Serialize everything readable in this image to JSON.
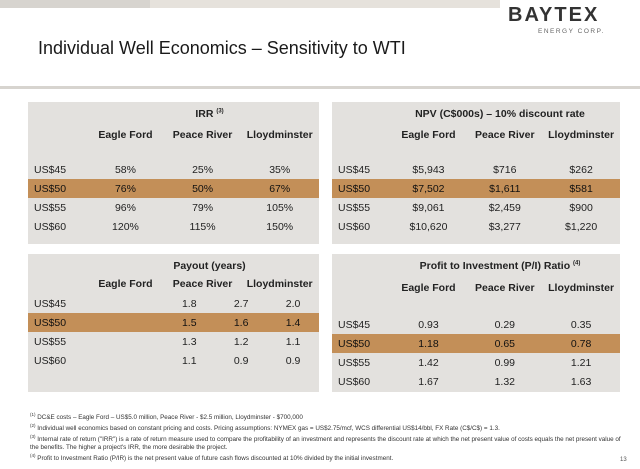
{
  "logo": {
    "name": "BAYTEX",
    "sub": "ENERGY CORP."
  },
  "page_title": "Individual Well Economics – Sensitivity to WTI",
  "irr": {
    "title": "IRR",
    "note": "(3)",
    "columns": [
      "Eagle Ford",
      "Peace River",
      "Lloydminster"
    ],
    "rows": [
      {
        "label": "US$45",
        "values": [
          "58%",
          "25%",
          "35%"
        ]
      },
      {
        "label": "US$50",
        "values": [
          "76%",
          "50%",
          "67%"
        ]
      },
      {
        "label": "US$55",
        "values": [
          "96%",
          "79%",
          "105%"
        ]
      },
      {
        "label": "US$60",
        "values": [
          "120%",
          "115%",
          "150%"
        ]
      }
    ]
  },
  "npv": {
    "title": "NPV (C$000s) – 10% discount rate",
    "columns": [
      "Eagle Ford",
      "Peace River",
      "Lloydminster"
    ],
    "rows": [
      {
        "label": "US$45",
        "values": [
          "$5,943",
          "$716",
          "$262"
        ]
      },
      {
        "label": "US$50",
        "values": [
          "$7,502",
          "$1,611",
          "$581"
        ]
      },
      {
        "label": "US$55",
        "values": [
          "$9,061",
          "$2,459",
          "$900"
        ]
      },
      {
        "label": "US$60",
        "values": [
          "$10,620",
          "$3,277",
          "$1,220"
        ]
      }
    ]
  },
  "payout": {
    "title": "Payout (years)",
    "columns": [
      "Eagle Ford",
      "Peace River",
      "Lloydminster"
    ],
    "rows": [
      {
        "label": "US$45",
        "values": [
          "1.8",
          "2.7",
          "2.0"
        ]
      },
      {
        "label": "US$50",
        "values": [
          "1.5",
          "1.6",
          "1.4"
        ]
      },
      {
        "label": "US$55",
        "values": [
          "1.3",
          "1.2",
          "1.1"
        ]
      },
      {
        "label": "US$60",
        "values": [
          "1.1",
          "0.9",
          "0.9"
        ]
      }
    ]
  },
  "pi": {
    "title": "Profit to Investment (P/I) Ratio",
    "note": "(4)",
    "columns": [
      "Eagle Ford",
      "Peace River",
      "Lloydminster"
    ],
    "rows": [
      {
        "label": "US$45",
        "values": [
          "0.93",
          "0.29",
          "0.35"
        ]
      },
      {
        "label": "US$50",
        "values": [
          "1.18",
          "0.65",
          "0.78"
        ]
      },
      {
        "label": "US$55",
        "values": [
          "1.42",
          "0.99",
          "1.21"
        ]
      },
      {
        "label": "US$60",
        "values": [
          "1.67",
          "1.32",
          "1.63"
        ]
      }
    ]
  },
  "colors": {
    "highlight": "#c38f58",
    "panel": "#e3e1de"
  },
  "footnotes": [
    {
      "num": "(1)",
      "text": "DC&E costs – Eagle Ford – US$5.0 million, Peace River - $2.5 million, Lloydminster - $700,000"
    },
    {
      "num": "(2)",
      "text": "Individual well economics based on constant pricing and costs. Pricing assumptions: NYMEX gas = US$2.75/mcf, WCS differential US$14/bbl, FX Rate (C$/C$) = 1.3."
    },
    {
      "num": "(3)",
      "text": "Internal rate of return (\"IRR\") is a rate of return measure used to compare the profitability of an investment and represents the discount rate at which the net present value of costs equals the net present value of the benefits. The higher a project's IRR, the more desirable the project."
    },
    {
      "num": "(4)",
      "text": "Profit to Investment Ratio (P/IR) is the net present value of future cash flows discounted at 10% divided by the initial investment."
    }
  ],
  "page_number": "13"
}
